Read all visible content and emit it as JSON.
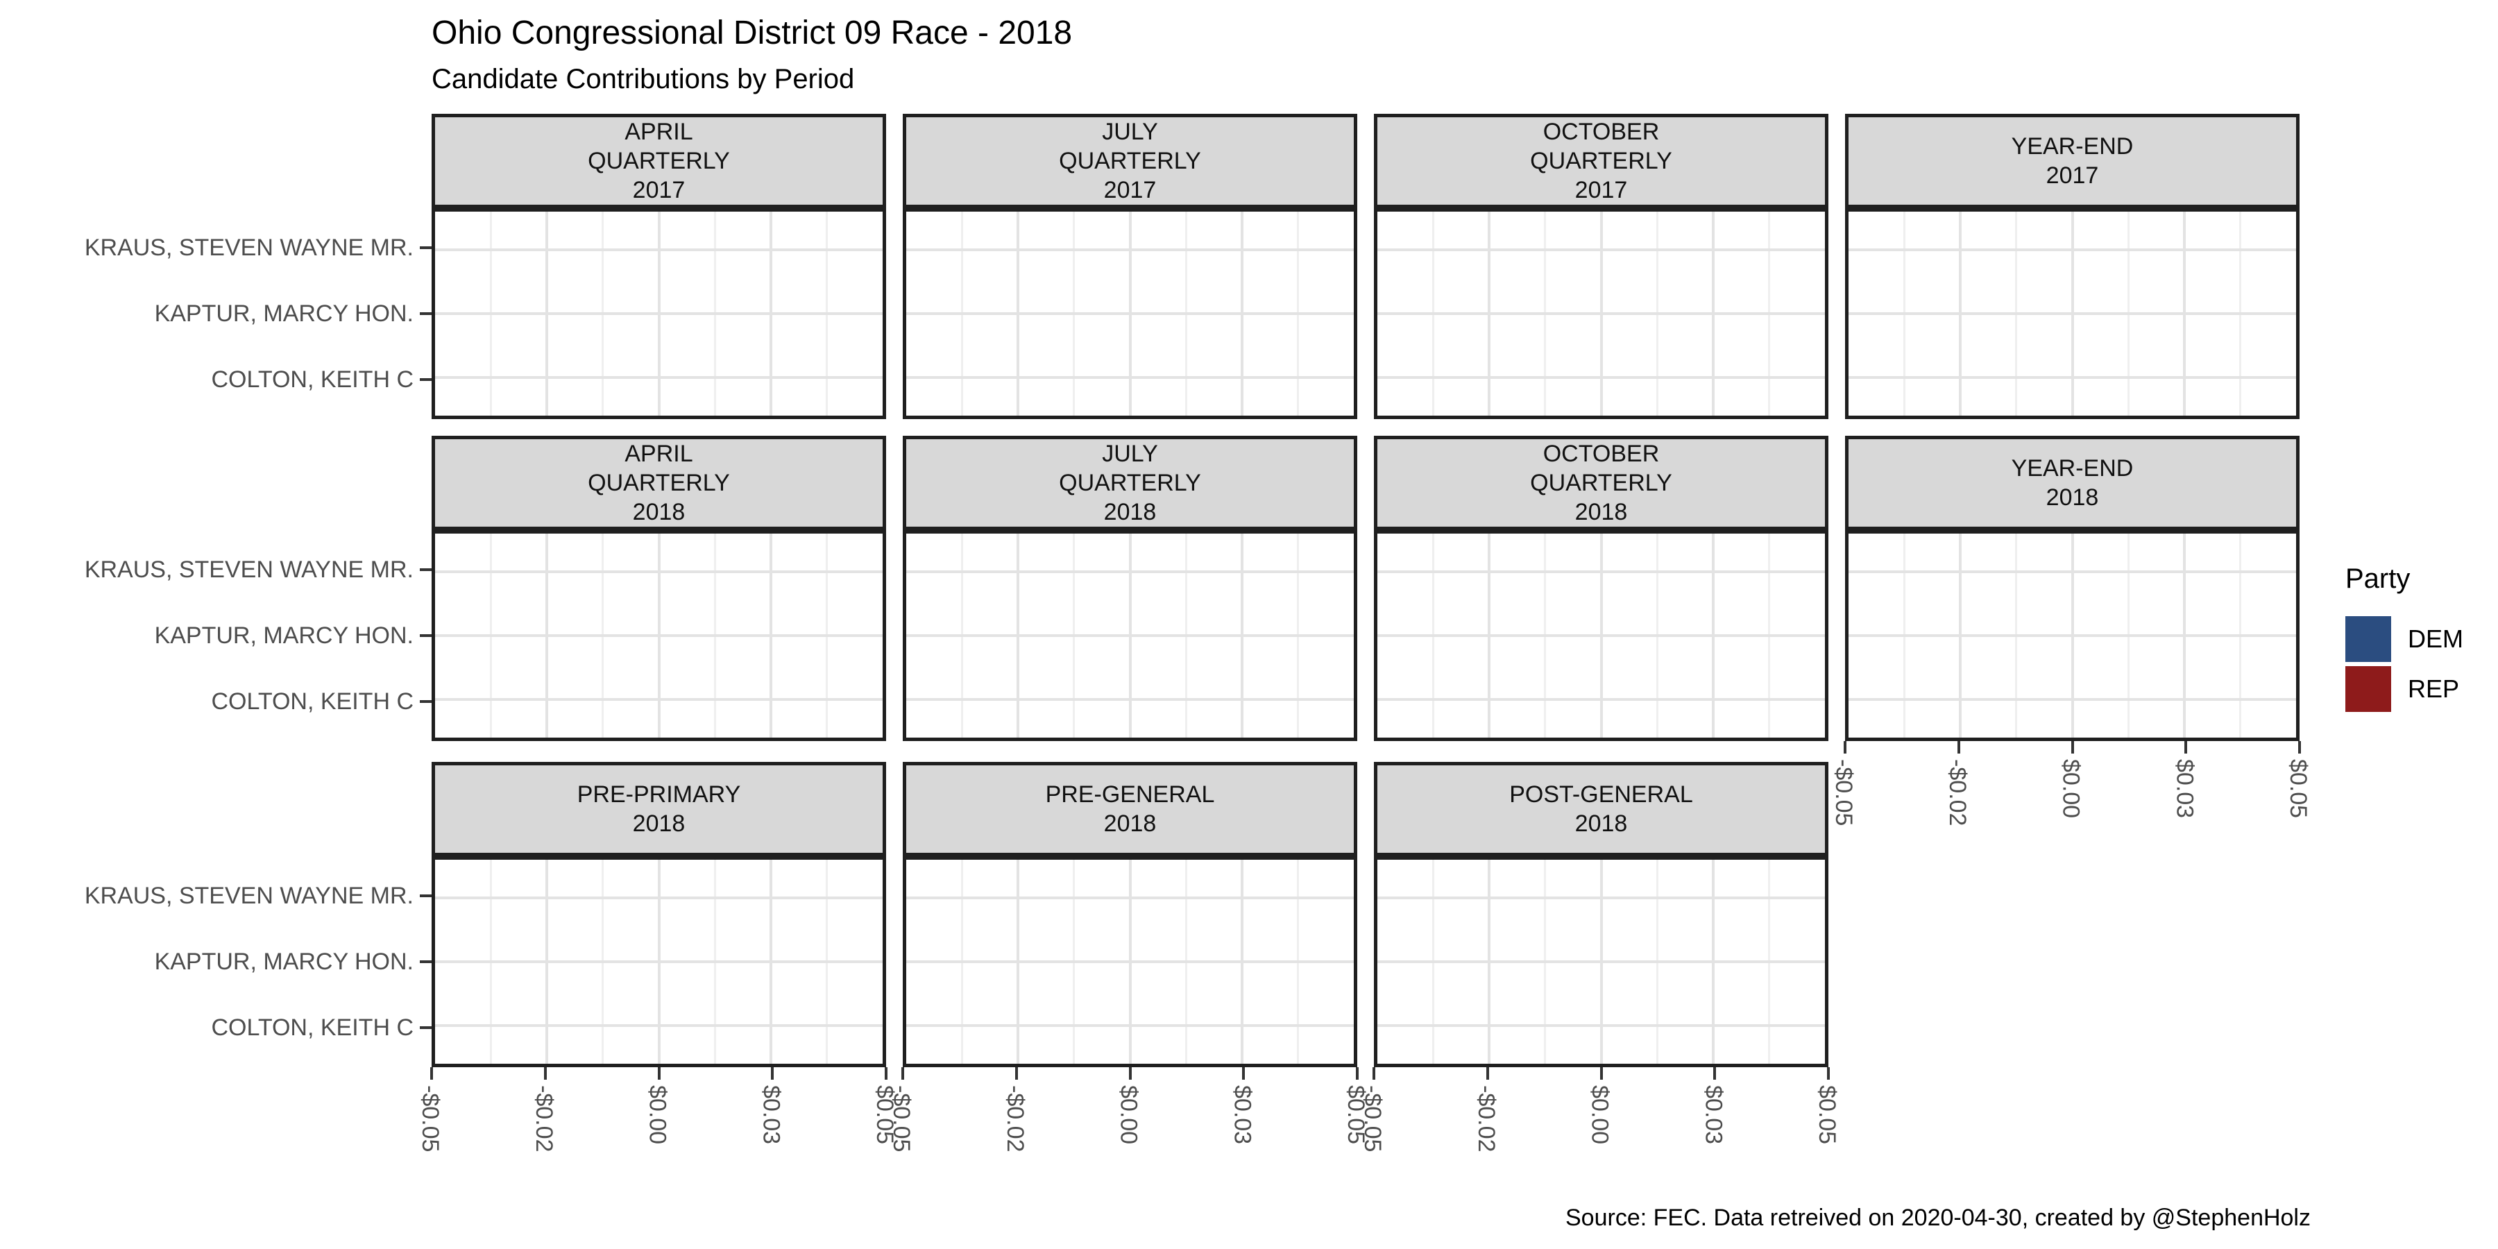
{
  "header": {
    "title": "Ohio Congressional District 09 Race - 2018",
    "subtitle": "Candidate Contributions by Period"
  },
  "footer": {
    "caption": "Source: FEC. Data retreived on 2020-04-30, created by @StephenHolz"
  },
  "legend": {
    "title": "Party",
    "items": [
      {
        "label": "DEM",
        "color": "#2B4D80"
      },
      {
        "label": "REP",
        "color": "#8E1B1B"
      }
    ]
  },
  "axes": {
    "y_categories": [
      "KRAUS, STEVEN WAYNE MR.",
      "KAPTUR, MARCY HON.",
      "COLTON, KEITH C"
    ],
    "x_tick_labels": [
      "-$0.05",
      "-$0.02",
      "$0.00",
      "$0.03",
      "$0.05"
    ]
  },
  "facets": [
    {
      "row": 0,
      "col": 0,
      "lines": [
        "APRIL",
        "QUARTERLY",
        "2017"
      ],
      "x_axis": false
    },
    {
      "row": 0,
      "col": 1,
      "lines": [
        "JULY",
        "QUARTERLY",
        "2017"
      ],
      "x_axis": false
    },
    {
      "row": 0,
      "col": 2,
      "lines": [
        "OCTOBER",
        "QUARTERLY",
        "2017"
      ],
      "x_axis": false
    },
    {
      "row": 0,
      "col": 3,
      "lines": [
        "YEAR-END",
        "2017"
      ],
      "x_axis": false
    },
    {
      "row": 1,
      "col": 0,
      "lines": [
        "APRIL",
        "QUARTERLY",
        "2018"
      ],
      "x_axis": false
    },
    {
      "row": 1,
      "col": 1,
      "lines": [
        "JULY",
        "QUARTERLY",
        "2018"
      ],
      "x_axis": false
    },
    {
      "row": 1,
      "col": 2,
      "lines": [
        "OCTOBER",
        "QUARTERLY",
        "2018"
      ],
      "x_axis": false
    },
    {
      "row": 1,
      "col": 3,
      "lines": [
        "YEAR-END",
        "2018"
      ],
      "x_axis": true
    },
    {
      "row": 2,
      "col": 0,
      "lines": [
        "PRE-PRIMARY",
        "2018"
      ],
      "x_axis": true
    },
    {
      "row": 2,
      "col": 1,
      "lines": [
        "PRE-GENERAL",
        "2018"
      ],
      "x_axis": true
    },
    {
      "row": 2,
      "col": 2,
      "lines": [
        "POST-GENERAL",
        "2018"
      ],
      "x_axis": true
    }
  ],
  "chart_data": {
    "type": "bar",
    "orientation": "horizontal",
    "title": "Ohio Congressional District 09 Race - 2018",
    "subtitle": "Candidate Contributions by Period",
    "caption": "Source: FEC. Data retreived on 2020-04-30, created by @StephenHolz",
    "facet_variable": "reporting period",
    "categories": [
      "KRAUS, STEVEN WAYNE MR.",
      "KAPTUR, MARCY HON.",
      "COLTON, KEITH C"
    ],
    "series": [
      {
        "name": "DEM",
        "color": "#2B4D80"
      },
      {
        "name": "REP",
        "color": "#8E1B1B"
      }
    ],
    "panels": [
      {
        "period": "APRIL QUARTERLY 2017",
        "values": [
          0,
          0,
          0
        ]
      },
      {
        "period": "JULY QUARTERLY 2017",
        "values": [
          0,
          0,
          0
        ]
      },
      {
        "period": "OCTOBER QUARTERLY 2017",
        "values": [
          0,
          0,
          0
        ]
      },
      {
        "period": "YEAR-END 2017",
        "values": [
          0,
          0,
          0
        ]
      },
      {
        "period": "APRIL QUARTERLY 2018",
        "values": [
          0,
          0,
          0
        ]
      },
      {
        "period": "JULY QUARTERLY 2018",
        "values": [
          0,
          0,
          0
        ]
      },
      {
        "period": "OCTOBER QUARTERLY 2018",
        "values": [
          0,
          0,
          0
        ]
      },
      {
        "period": "YEAR-END 2018",
        "values": [
          0,
          0,
          0
        ]
      },
      {
        "period": "PRE-PRIMARY 2018",
        "values": [
          0,
          0,
          0
        ]
      },
      {
        "period": "PRE-GENERAL 2018",
        "values": [
          0,
          0,
          0
        ]
      },
      {
        "period": "POST-GENERAL 2018",
        "values": [
          0,
          0,
          0
        ]
      }
    ],
    "xlim": [
      -0.05,
      0.05
    ],
    "x_tick_values": [
      -0.05,
      -0.025,
      0,
      0.025,
      0.05
    ],
    "x_tick_labels": [
      "-$0.05",
      "-$0.02",
      "$0.00",
      "$0.03",
      "$0.05"
    ],
    "xlabel": "",
    "ylabel": "",
    "grid": {
      "vertical_major": true,
      "vertical_minor": true,
      "horizontal_major": true,
      "horizontal_minor": false
    },
    "legend_position": "right"
  },
  "colors": {
    "strip_fill": "#D8D8D8",
    "panel_border": "#1F1F1F",
    "grid_major": "#E3E3E3",
    "grid_minor": "#EFEFEF",
    "axis_text": "#4D4D4D",
    "tick": "#333333"
  }
}
